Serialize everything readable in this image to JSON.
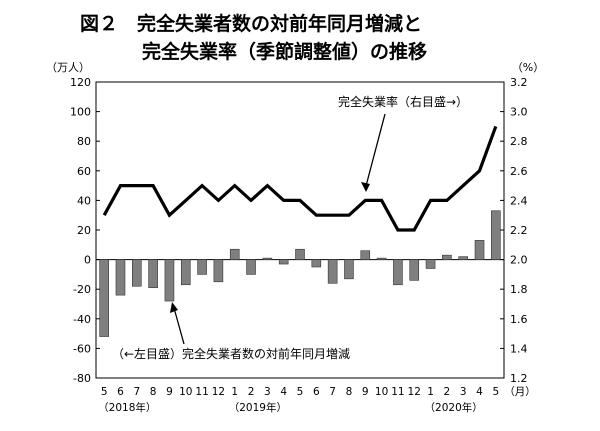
{
  "chart_data": {
    "type": "bar+line",
    "title_line1": "図２　完全失業者数の対前年同月増減と",
    "title_line2": "完全失業率（季節調整値）の推移",
    "left_axis_unit": "（万人）",
    "right_axis_unit": "（%）",
    "x_unit": "（月）",
    "left_ylim": [
      -80,
      120
    ],
    "left_yticks": [
      -80,
      -60,
      -40,
      -20,
      0,
      20,
      40,
      60,
      80,
      100,
      120
    ],
    "right_ylim": [
      1.2,
      3.2
    ],
    "right_yticks": [
      "1.2",
      "1.4",
      "1.6",
      "1.8",
      "2.0",
      "2.2",
      "2.4",
      "2.6",
      "2.8",
      "3.0",
      "3.2"
    ],
    "categories": [
      "5",
      "6",
      "7",
      "8",
      "9",
      "10",
      "11",
      "12",
      "1",
      "2",
      "3",
      "4",
      "5",
      "6",
      "7",
      "8",
      "9",
      "10",
      "11",
      "12",
      "1",
      "2",
      "3",
      "4",
      "5"
    ],
    "years": [
      {
        "label": "（2018年）",
        "at": 0
      },
      {
        "label": "（2019年）",
        "at": 8
      },
      {
        "label": "（2020年）",
        "at": 20
      }
    ],
    "bar_series": {
      "name": "（←左目盛）完全失業者数の対前年同月増減",
      "axis": "left",
      "color": "#7f7f7f",
      "values": [
        -52,
        -24,
        -18,
        -19,
        -28,
        -17,
        -10,
        -15,
        7,
        -10,
        1,
        -3,
        7,
        -5,
        -16,
        -13,
        6,
        1,
        -17,
        -14,
        -6,
        3,
        2,
        13,
        33
      ]
    },
    "line_series": {
      "name": "完全失業率（右目盛→）",
      "axis": "right",
      "color": "#000000",
      "values": [
        2.3,
        2.5,
        2.5,
        2.5,
        2.3,
        2.4,
        2.5,
        2.4,
        2.5,
        2.4,
        2.5,
        2.4,
        2.4,
        2.3,
        2.3,
        2.3,
        2.4,
        2.4,
        2.2,
        2.2,
        2.4,
        2.4,
        2.5,
        2.6,
        2.9
      ]
    }
  }
}
